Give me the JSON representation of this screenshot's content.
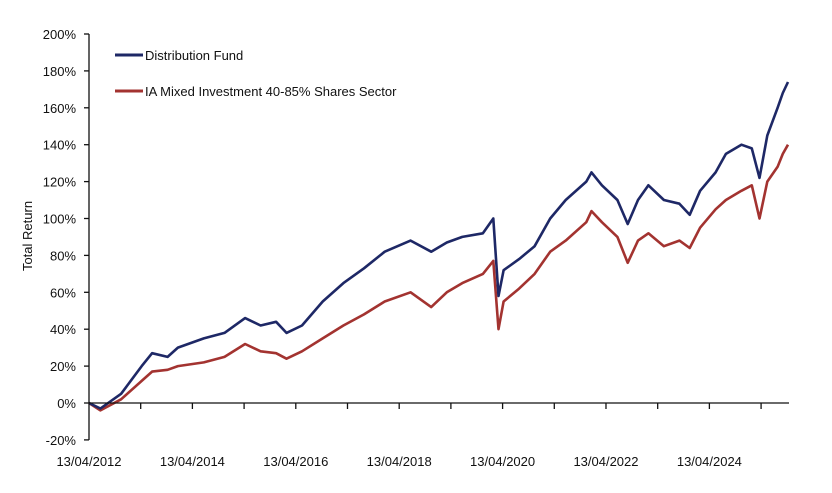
{
  "chart_data": {
    "type": "line",
    "title": "",
    "xlabel": "",
    "ylabel": "Total Return",
    "ylim": [
      -20,
      200
    ],
    "yticks": [
      -20,
      0,
      20,
      40,
      60,
      80,
      100,
      120,
      140,
      160,
      180,
      200
    ],
    "ytick_labels": [
      "-20%",
      "0%",
      "20%",
      "40%",
      "60%",
      "80%",
      "100%",
      "120%",
      "140%",
      "160%",
      "180%",
      "200%"
    ],
    "xlim": [
      2012.28,
      2025.82
    ],
    "xtick_labels": [
      "13/04/2012",
      "13/04/2014",
      "13/04/2016",
      "13/04/2018",
      "13/04/2020",
      "13/04/2022",
      "13/04/2024"
    ],
    "xtick_years": [
      2012.28,
      2014.28,
      2016.28,
      2018.28,
      2020.28,
      2022.28,
      2024.28
    ],
    "legend_position": "top-left",
    "grid": false,
    "series": [
      {
        "name": "Distribution Fund",
        "color": "#1e2866",
        "x": [
          2012.28,
          2012.5,
          2012.9,
          2013.3,
          2013.5,
          2013.8,
          2014.0,
          2014.5,
          2014.9,
          2015.3,
          2015.6,
          2015.9,
          2016.1,
          2016.4,
          2016.8,
          2017.2,
          2017.6,
          2018.0,
          2018.5,
          2018.9,
          2019.2,
          2019.5,
          2019.9,
          2020.1,
          2020.2,
          2020.3,
          2020.6,
          2020.9,
          2021.2,
          2021.5,
          2021.9,
          2022.0,
          2022.2,
          2022.5,
          2022.7,
          2022.9,
          2023.1,
          2023.4,
          2023.7,
          2023.9,
          2024.1,
          2024.4,
          2024.6,
          2024.9,
          2025.1,
          2025.25,
          2025.4,
          2025.6,
          2025.7,
          2025.8
        ],
        "values": [
          0,
          -3,
          5,
          20,
          27,
          25,
          30,
          35,
          38,
          46,
          42,
          44,
          38,
          42,
          55,
          65,
          73,
          82,
          88,
          82,
          87,
          90,
          92,
          100,
          58,
          72,
          78,
          85,
          100,
          110,
          120,
          125,
          118,
          110,
          97,
          110,
          118,
          110,
          108,
          102,
          115,
          125,
          135,
          140,
          138,
          122,
          145,
          160,
          168,
          174
        ]
      },
      {
        "name": "IA Mixed Investment 40-85% Shares Sector",
        "color": "#a33330",
        "x": [
          2012.28,
          2012.5,
          2012.9,
          2013.3,
          2013.5,
          2013.8,
          2014.0,
          2014.5,
          2014.9,
          2015.3,
          2015.6,
          2015.9,
          2016.1,
          2016.4,
          2016.8,
          2017.2,
          2017.6,
          2018.0,
          2018.5,
          2018.9,
          2019.2,
          2019.5,
          2019.9,
          2020.1,
          2020.2,
          2020.3,
          2020.6,
          2020.9,
          2021.2,
          2021.5,
          2021.9,
          2022.0,
          2022.2,
          2022.5,
          2022.7,
          2022.9,
          2023.1,
          2023.4,
          2023.7,
          2023.9,
          2024.1,
          2024.4,
          2024.6,
          2024.9,
          2025.1,
          2025.25,
          2025.4,
          2025.6,
          2025.7,
          2025.8
        ],
        "values": [
          0,
          -4,
          2,
          12,
          17,
          18,
          20,
          22,
          25,
          32,
          28,
          27,
          24,
          28,
          35,
          42,
          48,
          55,
          60,
          52,
          60,
          65,
          70,
          77,
          40,
          55,
          62,
          70,
          82,
          88,
          98,
          104,
          98,
          90,
          76,
          88,
          92,
          85,
          88,
          84,
          95,
          105,
          110,
          115,
          118,
          100,
          120,
          128,
          135,
          140
        ]
      }
    ]
  }
}
